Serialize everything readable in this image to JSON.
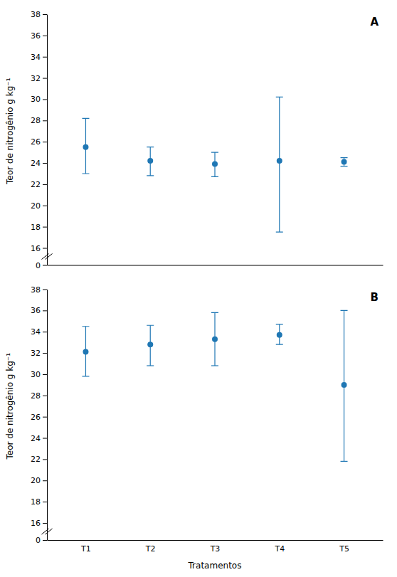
{
  "chart_data": [
    {
      "type": "scatter",
      "title": "A",
      "ylabel": "Teor de nitrogênio g kg⁻¹",
      "categories": [
        null,
        null,
        null,
        null,
        null
      ],
      "values": [
        25.5,
        24.2,
        23.9,
        24.2,
        24.1
      ],
      "yerr_lower": [
        2.5,
        1.4,
        1.2,
        6.7,
        0.4
      ],
      "yerr_upper": [
        2.7,
        1.3,
        1.1,
        6.0,
        0.4
      ],
      "ylim": [
        0,
        38
      ],
      "yticks": [
        0,
        16,
        18,
        20,
        22,
        24,
        26,
        28,
        30,
        32,
        34,
        36,
        38
      ],
      "tick_labels": "y"
    },
    {
      "type": "scatter",
      "title": "B",
      "xlabel": "Tratamentos",
      "ylabel": "Teor de nitrogênio g kg⁻¹",
      "categories": [
        "T1",
        "T2",
        "T3",
        "T4",
        "T5"
      ],
      "values": [
        32.1,
        32.8,
        33.3,
        33.7,
        29.0
      ],
      "yerr_lower": [
        2.3,
        2.0,
        2.5,
        0.9,
        7.2
      ],
      "yerr_upper": [
        2.4,
        1.8,
        2.5,
        1.0,
        7.0
      ],
      "ylim": [
        0,
        38
      ],
      "yticks": [
        0,
        16,
        18,
        20,
        22,
        24,
        26,
        28,
        30,
        32,
        34,
        36,
        38
      ]
    }
  ]
}
